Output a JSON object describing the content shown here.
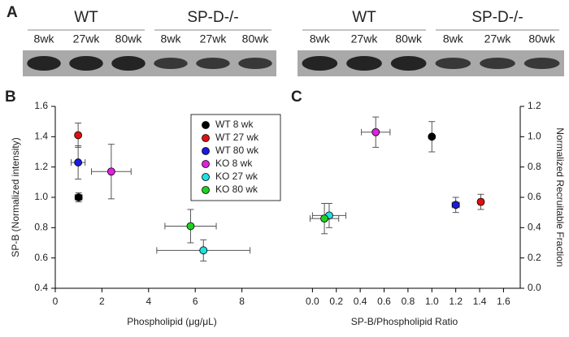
{
  "panel_labels": [
    "A",
    "B",
    "C"
  ],
  "blots": [
    {
      "groups": [
        {
          "label": "WT",
          "lanes": [
            "8wk",
            "27wk",
            "80wk"
          ]
        },
        {
          "label": "SP-D-/-",
          "lanes": [
            "8wk",
            "27wk",
            "80wk"
          ]
        }
      ]
    },
    {
      "groups": [
        {
          "label": "WT",
          "lanes": [
            "8wk",
            "27wk",
            "80wk"
          ]
        },
        {
          "label": "SP-D-/-",
          "lanes": [
            "8wk",
            "27wk",
            "80wk"
          ]
        }
      ]
    }
  ],
  "chart_data": [
    {
      "type": "scatter",
      "x_label": "Phospholipid (μg/μL)",
      "y_label": "SP-B (Normalized intensity)",
      "xlim": [
        0,
        10
      ],
      "ylim": [
        0.4,
        1.6
      ],
      "xticks": [
        0,
        2,
        4,
        6,
        8
      ],
      "yticks": [
        0.4,
        0.6,
        0.8,
        {
          "value": 1.0,
          "label": "1.0"
        },
        1.2,
        1.4,
        1.6
      ],
      "y_axis_side": "left",
      "legend": "upper right",
      "series": [
        {
          "name": "WT 8 wk",
          "color": "#000000",
          "x": [
            1.0
          ],
          "values": [
            1.0
          ],
          "xerr": [
            0.15
          ],
          "yerr": [
            0.03
          ]
        },
        {
          "name": "WT 27 wk",
          "color": "#e01010",
          "x": [
            0.98
          ],
          "values": [
            1.41
          ],
          "xerr": [
            0.05
          ],
          "yerr": [
            0.08
          ]
        },
        {
          "name": "WT 80 wk",
          "color": "#1a1ae0",
          "x": [
            0.98
          ],
          "values": [
            1.23
          ],
          "xerr": [
            0.3
          ],
          "yerr": [
            0.11
          ]
        },
        {
          "name": "KO 8 wk",
          "color": "#e020e0",
          "x": [
            2.4
          ],
          "values": [
            1.17
          ],
          "xerr": [
            0.85
          ],
          "yerr": [
            0.18
          ]
        },
        {
          "name": "KO 27 wk",
          "color": "#20e0e0",
          "x": [
            6.35
          ],
          "values": [
            0.65
          ],
          "xerr": [
            2.0
          ],
          "yerr": [
            0.07
          ]
        },
        {
          "name": "KO 80 wk",
          "color": "#20d020",
          "x": [
            5.8
          ],
          "values": [
            0.81
          ],
          "xerr": [
            1.1
          ],
          "yerr": [
            0.11
          ]
        }
      ]
    },
    {
      "type": "scatter",
      "x_label": "SP-B/Phospholipid Ratio",
      "y_label": "Normalized Recruitable Fraction",
      "xlim": [
        -0.2,
        1.74
      ],
      "ylim": [
        0,
        1.2
      ],
      "xticks": [
        {
          "value": 0,
          "label": "0.0"
        },
        0.2,
        0.4,
        0.6,
        0.8,
        {
          "value": 1.0,
          "label": "1.0"
        },
        1.2,
        1.4,
        1.6
      ],
      "yticks": [
        {
          "value": 0,
          "label": "0.0"
        },
        0.2,
        0.4,
        0.6,
        0.8,
        {
          "value": 1.0,
          "label": "1.0"
        },
        1.2
      ],
      "y_axis_side": "right",
      "series": [
        {
          "color": "#000000",
          "x": [
            1.0
          ],
          "values": [
            1.0
          ],
          "xerr": [
            0.01
          ],
          "yerr": [
            0.1
          ]
        },
        {
          "color": "#e01010",
          "x": [
            1.41
          ],
          "values": [
            0.57
          ],
          "xerr": [
            0.02
          ],
          "yerr": [
            0.05
          ]
        },
        {
          "color": "#1a1ae0",
          "x": [
            1.2
          ],
          "values": [
            0.55
          ],
          "xerr": [
            0.03
          ],
          "yerr": [
            0.05
          ]
        },
        {
          "color": "#e020e0",
          "x": [
            0.53
          ],
          "values": [
            1.03
          ],
          "xerr": [
            0.12
          ],
          "yerr": [
            0.1
          ]
        },
        {
          "color": "#20e0e0",
          "x": [
            0.14
          ],
          "values": [
            0.48
          ],
          "xerr": [
            0.14
          ],
          "yerr": [
            0.08
          ]
        },
        {
          "color": "#20d020",
          "x": [
            0.1
          ],
          "values": [
            0.46
          ],
          "xerr": [
            0.12
          ],
          "yerr": [
            0.1
          ]
        }
      ]
    }
  ]
}
